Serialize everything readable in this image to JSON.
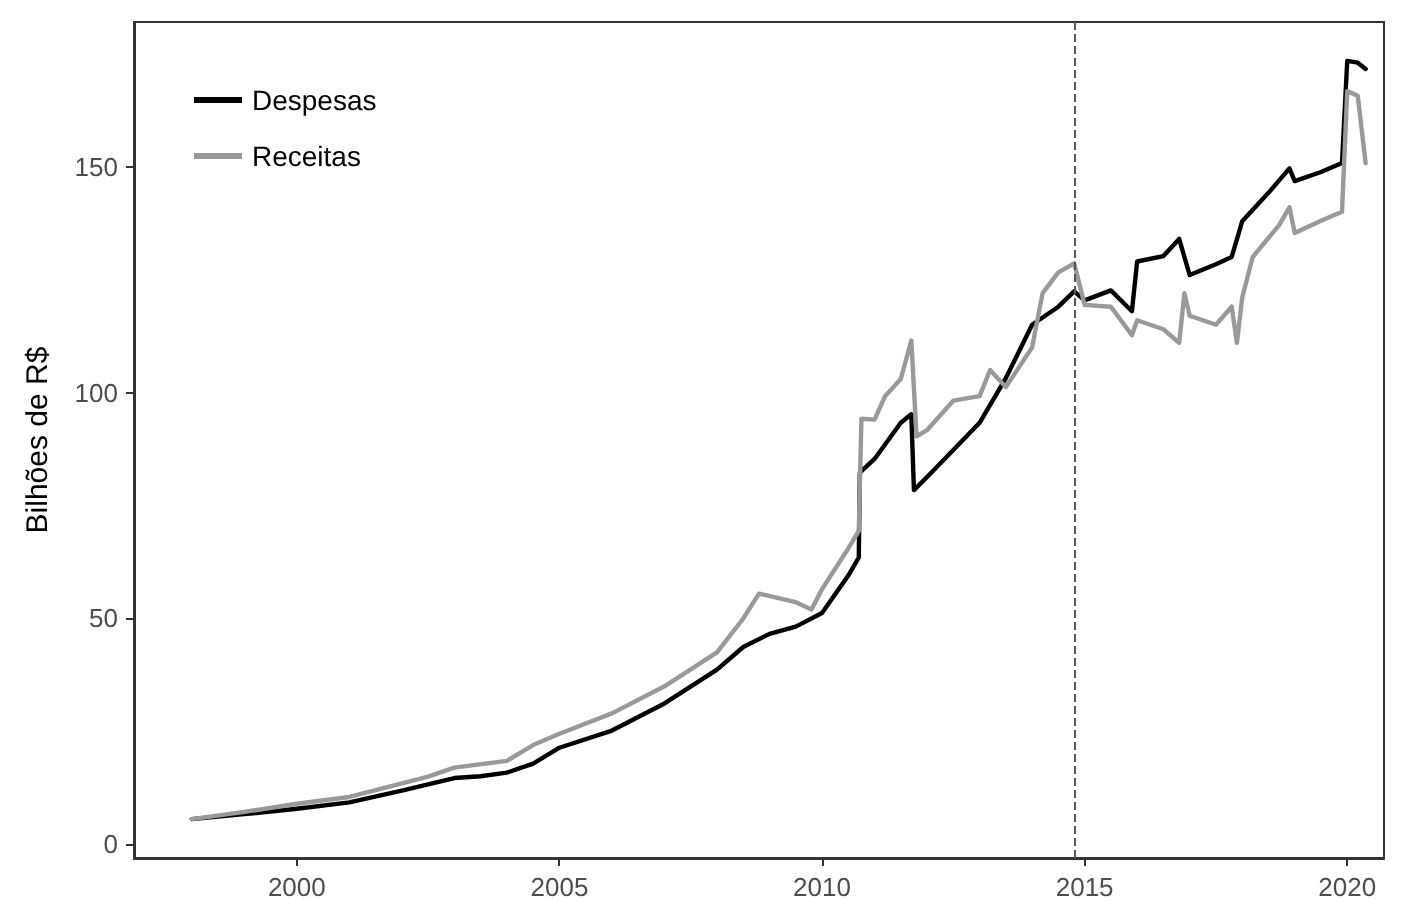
{
  "chart_data": {
    "type": "line",
    "ylabel": "Bilhões de R$",
    "xlim": [
      1996.9,
      2020.7
    ],
    "ylim": [
      -3,
      182
    ],
    "xticks": [
      2000,
      2005,
      2010,
      2015,
      2020
    ],
    "yticks": [
      0,
      50,
      100,
      150
    ],
    "grid": false,
    "legend": "top left",
    "line_style": "solid",
    "marker": "none",
    "ref_lines": [
      {
        "axis": "x",
        "value": 2014.8,
        "color": "#555555",
        "line_style": "dashed"
      }
    ],
    "series": [
      {
        "name": "Despesas",
        "color": "#000000",
        "x": [
          1998,
          1999,
          2000,
          2001,
          2002,
          2003,
          2003.5,
          2004,
          2004.5,
          2005,
          2006,
          2007,
          2008,
          2008.5,
          2009,
          2009.5,
          2010,
          2010.5,
          2010.7,
          2010.72,
          2011,
          2011.5,
          2011.7,
          2011.75,
          2012,
          2012.5,
          2013,
          2013.5,
          2014,
          2014.5,
          2014.8,
          2015,
          2015.5,
          2015.9,
          2016,
          2016.5,
          2016.8,
          2017,
          2017.5,
          2017.8,
          2018,
          2018.5,
          2018.9,
          2019,
          2019.5,
          2019.9,
          2020,
          2020.2,
          2020.35
        ],
        "values": [
          5.6,
          6.7,
          7.9,
          9.3,
          11.9,
          14.7,
          15.1,
          15.9,
          17.9,
          21.4,
          25.2,
          31.2,
          38.7,
          43.7,
          46.6,
          48.2,
          51.2,
          59.5,
          63.5,
          82.3,
          85.3,
          93.3,
          95.2,
          78.4,
          81.3,
          87.3,
          93.3,
          103.2,
          115,
          119,
          122.4,
          120.4,
          122.6,
          118,
          129,
          130.2,
          134,
          126,
          128.4,
          130,
          137.9,
          144.2,
          149.6,
          146.8,
          148.8,
          150.8,
          173.4,
          173,
          171.6
        ]
      },
      {
        "name": "Receitas",
        "color": "#999999",
        "x": [
          1998,
          1999,
          2000,
          2001,
          2002,
          2002.5,
          2003,
          2004,
          2004.5,
          2005,
          2006,
          2007,
          2008,
          2008.5,
          2008.8,
          2009.5,
          2009.8,
          2010,
          2010.5,
          2010.7,
          2010.75,
          2011,
          2011.2,
          2011.5,
          2011.7,
          2011.8,
          2012,
          2012.5,
          2013,
          2013.2,
          2013.5,
          2014,
          2014.2,
          2014.5,
          2014.8,
          2015,
          2015.5,
          2015.9,
          2016,
          2016.5,
          2016.8,
          2016.9,
          2017,
          2017.5,
          2017.8,
          2017.9,
          2018,
          2018.2,
          2018.7,
          2018.9,
          2019,
          2019.5,
          2019.9,
          2020,
          2020.2,
          2020.35
        ],
        "values": [
          5.6,
          7.2,
          9,
          10.5,
          13.5,
          15,
          17,
          18.5,
          22,
          24.5,
          29,
          35,
          42.5,
          50,
          55.5,
          53.6,
          52,
          56.5,
          65.5,
          69.4,
          94.2,
          94,
          99.2,
          103,
          111.5,
          90.3,
          91.7,
          98.2,
          99.2,
          105,
          101.2,
          110,
          122,
          126.6,
          128.6,
          119.4,
          119,
          112.7,
          116,
          114,
          111,
          122,
          117,
          115,
          119,
          111,
          121,
          130,
          137,
          141,
          135.3,
          138,
          140,
          166.7,
          165.7,
          150.8
        ]
      }
    ]
  }
}
